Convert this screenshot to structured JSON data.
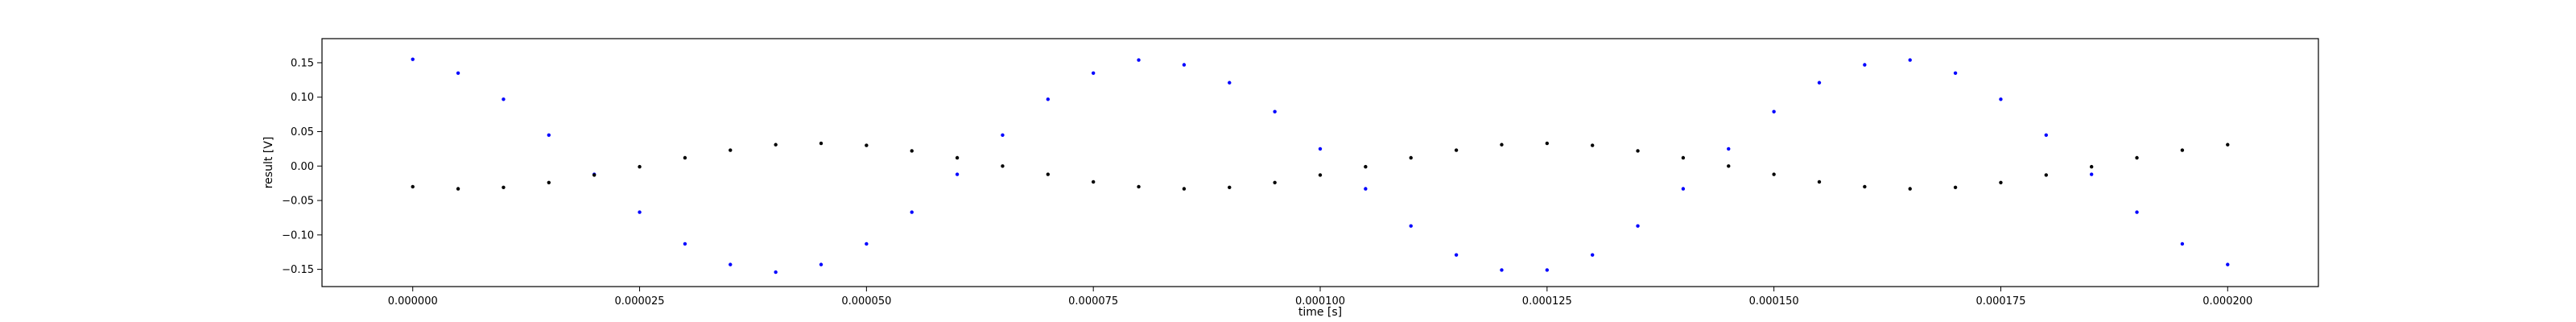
{
  "chart_data": {
    "type": "scatter",
    "title": "",
    "xlabel": "time [s]",
    "ylabel": "result [V]",
    "xlim": [
      -1e-05,
      0.00021
    ],
    "ylim": [
      -0.175,
      0.185
    ],
    "xticks": [
      {
        "value": 0.0,
        "label": "0.000000"
      },
      {
        "value": 2.5e-05,
        "label": "0.000025"
      },
      {
        "value": 5e-05,
        "label": "0.000050"
      },
      {
        "value": 7.5e-05,
        "label": "0.000075"
      },
      {
        "value": 0.0001,
        "label": "0.000100"
      },
      {
        "value": 0.000125,
        "label": "0.000125"
      },
      {
        "value": 0.00015,
        "label": "0.000150"
      },
      {
        "value": 0.000175,
        "label": "0.000175"
      },
      {
        "value": 0.0002,
        "label": "0.000200"
      }
    ],
    "yticks": [
      {
        "value": 0.15,
        "label": "0.15"
      },
      {
        "value": 0.1,
        "label": "0.10"
      },
      {
        "value": 0.05,
        "label": "0.05"
      },
      {
        "value": 0.0,
        "label": "0.00"
      },
      {
        "value": -0.05,
        "label": "−0.05"
      },
      {
        "value": -0.1,
        "label": "−0.10"
      },
      {
        "value": -0.15,
        "label": "−0.15"
      }
    ],
    "grid": false,
    "legend": "none",
    "series": [
      {
        "color": "#0000ff",
        "marker": "dot",
        "x": [
          0.0,
          5e-06,
          1e-05,
          1.5e-05,
          2e-05,
          2.5e-05,
          3e-05,
          3.5e-05,
          4e-05,
          4.5e-05,
          5e-05,
          5.5e-05,
          6e-05,
          6.5e-05,
          7e-05,
          7.5e-05,
          8e-05,
          8.5e-05,
          9e-05,
          9.5e-05,
          0.0001,
          0.000105,
          0.00011,
          0.000115,
          0.00012,
          0.000125,
          0.00013,
          0.000135,
          0.00014,
          0.000145,
          0.00015,
          0.000155,
          0.00016,
          0.000165,
          0.00017,
          0.000175,
          0.00018,
          0.000185,
          0.00019,
          0.000195,
          0.0002
        ],
        "y": [
          0.155,
          0.135,
          0.097,
          0.045,
          -0.012,
          -0.067,
          -0.113,
          -0.143,
          -0.154,
          -0.143,
          -0.113,
          -0.067,
          -0.012,
          0.045,
          0.097,
          0.135,
          0.154,
          0.147,
          0.121,
          0.079,
          0.025,
          -0.033,
          -0.087,
          -0.129,
          -0.151,
          -0.151,
          -0.129,
          -0.087,
          -0.033,
          0.025,
          0.079,
          0.121,
          0.147,
          0.154,
          0.135,
          0.097,
          0.045,
          -0.012,
          -0.067,
          -0.113,
          -0.143
        ]
      },
      {
        "color": "#000000",
        "marker": "dot",
        "x": [
          0.0,
          5e-06,
          1e-05,
          1.5e-05,
          2e-05,
          2.5e-05,
          3e-05,
          3.5e-05,
          4e-05,
          4.5e-05,
          5e-05,
          5.5e-05,
          6e-05,
          6.5e-05,
          7e-05,
          7.5e-05,
          8e-05,
          8.5e-05,
          9e-05,
          9.5e-05,
          0.0001,
          0.000105,
          0.00011,
          0.000115,
          0.00012,
          0.000125,
          0.00013,
          0.000135,
          0.00014,
          0.000145,
          0.00015,
          0.000155,
          0.00016,
          0.000165,
          0.00017,
          0.000175,
          0.00018,
          0.000185,
          0.00019,
          0.000195,
          0.0002
        ],
        "y": [
          -0.03,
          -0.033,
          -0.031,
          -0.024,
          -0.013,
          -0.001,
          0.012,
          0.023,
          0.031,
          0.033,
          0.03,
          0.022,
          0.012,
          0.0,
          -0.012,
          -0.023,
          -0.03,
          -0.033,
          -0.031,
          -0.024,
          -0.013,
          -0.001,
          0.012,
          0.023,
          0.031,
          0.033,
          0.03,
          0.022,
          0.012,
          0.0,
          -0.012,
          -0.023,
          -0.03,
          -0.033,
          -0.031,
          -0.024,
          -0.013,
          -0.001,
          0.012,
          0.023,
          0.031
        ]
      }
    ]
  }
}
